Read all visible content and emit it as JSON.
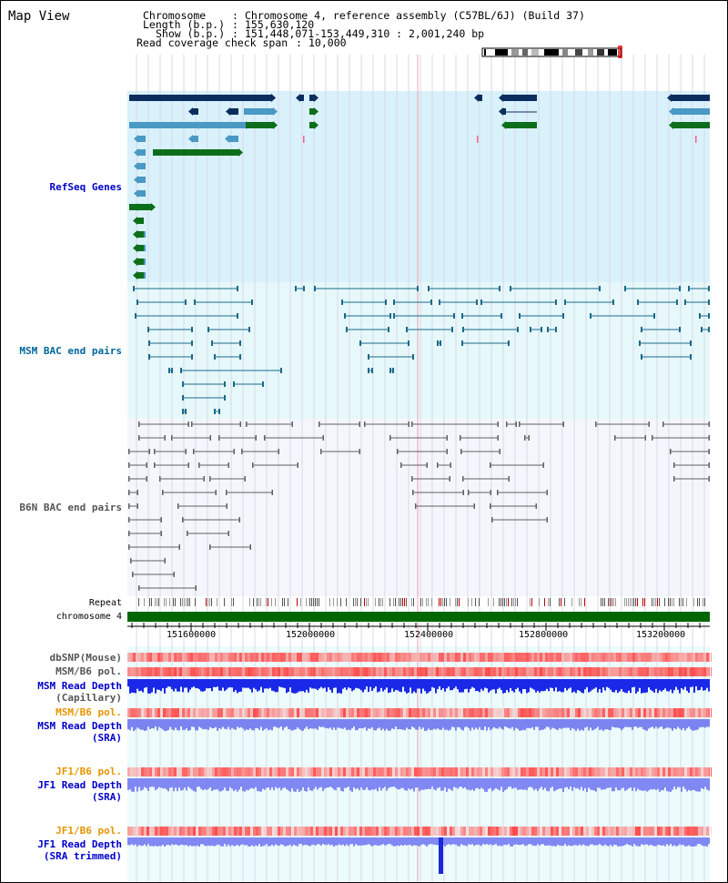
{
  "header": {
    "title": "Map View",
    "chromosome_key": "Chromosome",
    "chromosome_value": "Chromosome 4, reference assembly (C57BL/6J) (Build 37)",
    "length_key": "Length (b.p.)",
    "length_value": "155,630,120",
    "show_key": "Show (b.p.)",
    "show_value": "151,448,071-153,449,310 : 2,001,240 bp",
    "coverage_key": "Read coverage check span",
    "coverage_value": "10,000"
  },
  "tracks": {
    "refseq": "RefSeq Genes",
    "msm_bac": "MSM BAC end pairs",
    "b6n_bac": "B6N BAC end pairs",
    "repeat": "Repeat",
    "chromosome": "chromosome 4",
    "dbsnp": "dbSNP(Mouse)",
    "msm_b6_pol_1": "MSM/B6 pol.",
    "msm_depth_cap_1": "MSM Read Depth",
    "msm_depth_cap_2": "(Capillary)",
    "msm_b6_pol_2": "MSM/B6 pol.",
    "msm_depth_sra_1": "MSM Read Depth",
    "msm_depth_sra_2": "(SRA)",
    "jf1_b6_pol_1": "JF1/B6 pol.",
    "jf1_depth_sra_1": "JF1 Read Depth",
    "jf1_depth_sra_2": "(SRA)",
    "jf1_b6_pol_2": "JF1/B6 pol.",
    "jf1_depth_trim_1": "JF1 Read Depth",
    "jf1_depth_trim_2": "(SRA trimmed)"
  },
  "axis": {
    "ticks": [
      "151600000",
      "152000000",
      "152400000",
      "152800000",
      "153200000"
    ]
  },
  "colors": {
    "refseq_bg": "#d9f1fa",
    "msm_bg": "#e6f8fa",
    "b6n_bg": "#f4f6fc",
    "lower_bg": "#ecfbfb",
    "refseq_label": "#0000cc",
    "msm_label": "#006699",
    "b6n_label": "#555555",
    "pol_label": "#e69500",
    "depth_label": "#0000cc",
    "gene_dark": "#0b2d5e",
    "gene_mid": "#4a98c4",
    "gene_green": "#0c6e1a",
    "bac_line": "#1a6a8a",
    "b6n_line": "#606060",
    "chromosome_bar": "#006600"
  }
}
